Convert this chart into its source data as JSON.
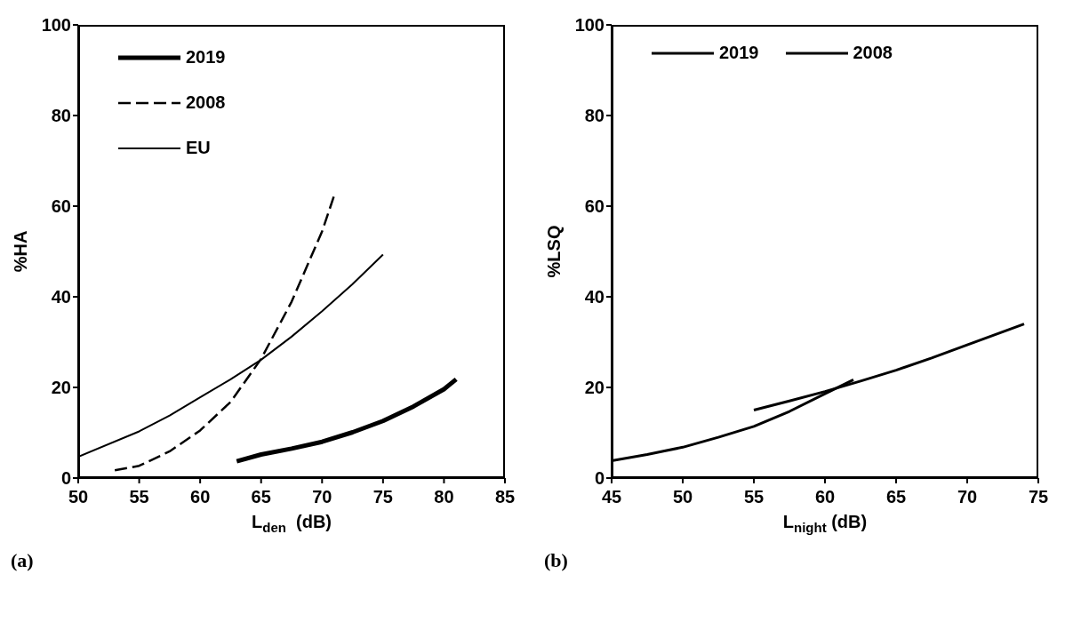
{
  "chart_data": [
    {
      "type": "line",
      "xlabel": "L$_{den}$  (dB)",
      "ylabel": "%HA",
      "xlim": [
        50,
        85
      ],
      "xticks": [
        50,
        55,
        60,
        65,
        70,
        75,
        80,
        85
      ],
      "ylim": [
        0,
        100
      ],
      "yticks": [
        0,
        20,
        40,
        60,
        80,
        100
      ],
      "grid": false,
      "legend": "top left",
      "marker": "none",
      "annotations": [
        "(a)"
      ],
      "series": [
        {
          "name": "2019",
          "color": "#000000",
          "line_style": "solid",
          "x": [
            63,
            65,
            67.5,
            70,
            72.5,
            75,
            77.5,
            80,
            81
          ],
          "values": [
            3.7,
            5.2,
            6.5,
            8.0,
            10.1,
            12.6,
            15.8,
            19.6,
            21.8
          ]
        },
        {
          "name": "2008",
          "color": "#000000",
          "line_style": "dashed",
          "x": [
            53,
            55,
            57.5,
            60,
            62.5,
            65,
            67.5,
            70,
            71
          ],
          "values": [
            1.7,
            2.7,
            5.9,
            10.5,
            16.8,
            26.3,
            38.9,
            54.4,
            62.4
          ]
        },
        {
          "name": "EU",
          "color": "#000000",
          "line_style": "solid",
          "x": [
            50,
            55,
            57.5,
            60,
            62.5,
            65,
            67.5,
            70,
            72.5,
            75
          ],
          "values": [
            4.7,
            10.3,
            13.8,
            17.8,
            21.8,
            26.1,
            31.2,
            36.8,
            42.8,
            49.3
          ]
        }
      ]
    },
    {
      "type": "line",
      "xlabel": "L$_{night}$ (dB)",
      "ylabel": "%LSQ",
      "xlim": [
        45,
        75
      ],
      "xticks": [
        45,
        50,
        55,
        60,
        65,
        70,
        75
      ],
      "ylim": [
        0,
        100
      ],
      "yticks": [
        0,
        20,
        40,
        60,
        80,
        100
      ],
      "grid": false,
      "legend": "top",
      "marker": "none",
      "annotations": [
        "(b)"
      ],
      "series": [
        {
          "name": "2019",
          "color": "#000000",
          "line_style": "solid",
          "x": [
            45,
            47.5,
            50,
            52.5,
            55,
            57.5,
            60,
            62
          ],
          "values": [
            3.8,
            5.2,
            6.8,
            9.0,
            11.4,
            14.7,
            18.6,
            21.7
          ]
        },
        {
          "name": "2008",
          "color": "#000000",
          "line_style": "solid",
          "x": [
            55,
            57.5,
            60,
            62.5,
            65,
            67.5,
            70,
            72,
            74
          ],
          "values": [
            15.0,
            17.0,
            19.1,
            21.4,
            23.8,
            26.5,
            29.4,
            31.7,
            34.0
          ]
        }
      ]
    }
  ]
}
